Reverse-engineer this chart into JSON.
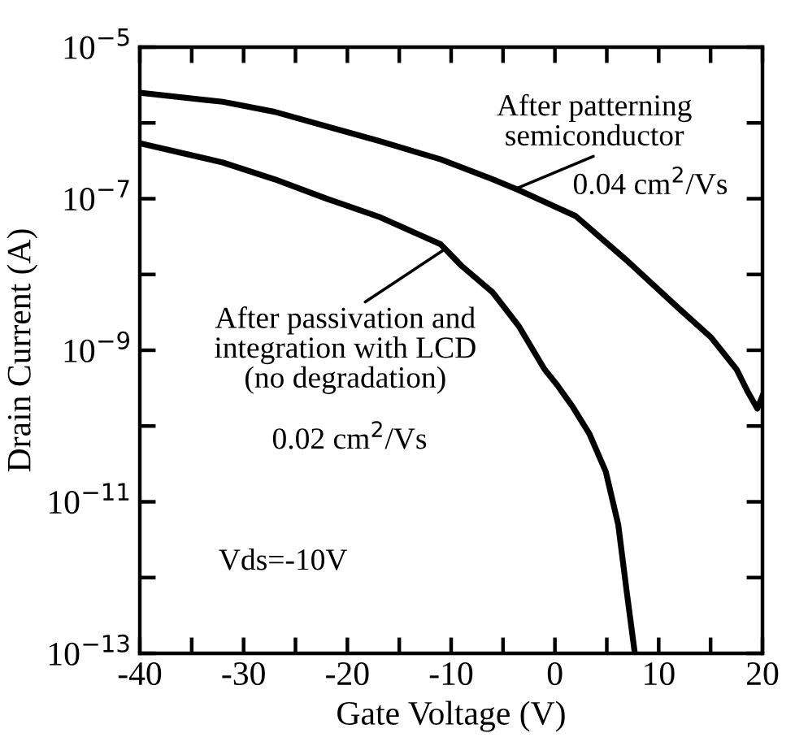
{
  "chart_data": {
    "type": "line",
    "xlabel": "Gate Voltage (V)",
    "ylabel": "Drain Current (A)",
    "log": "y",
    "grid": false,
    "marker": "none",
    "line_style": "solid",
    "xlim": [
      -40,
      20
    ],
    "ylim": [
      1e-13,
      1e-05
    ],
    "xticks": [
      -40,
      {
        "value": -35,
        "label": null
      },
      -30,
      {
        "value": -25,
        "label": null
      },
      -20,
      {
        "value": -15,
        "label": null
      },
      -10,
      {
        "value": -5,
        "label": null
      },
      0,
      {
        "value": 5,
        "label": null
      },
      10,
      {
        "value": 15,
        "label": null
      },
      20
    ],
    "yticks": [
      {
        "value": 1e-13,
        "label": "10$^{−13}$"
      },
      {
        "value": 1e-12,
        "label": null
      },
      {
        "value": 1e-11,
        "label": "10$^{−11}$"
      },
      {
        "value": 1e-10,
        "label": null
      },
      {
        "value": 1e-09,
        "label": "10$^{−9}$"
      },
      {
        "value": 1e-08,
        "label": null
      },
      {
        "value": 1e-07,
        "label": "10$^{−7}$"
      },
      {
        "value": 1e-06,
        "label": null
      },
      {
        "value": 1e-05,
        "label": "10$^{−5}$"
      }
    ],
    "series": [
      {
        "color": "#000000",
        "x": [
          -40,
          -32,
          -27,
          -22,
          -17,
          -11,
          -6,
          -3.5,
          2,
          7,
          12,
          15,
          17.5,
          18.6,
          19.5,
          20
        ],
        "values": [
          2.5e-06,
          1.9e-06,
          1.4e-06,
          9e-07,
          5.8e-07,
          3.3e-07,
          1.8e-07,
          1.3e-07,
          5.9e-08,
          1.5e-08,
          3.5e-09,
          1.5e-09,
          5.6e-10,
          2.8e-10,
          1.7e-10,
          2.5e-10
        ]
      },
      {
        "color": "#000000",
        "x": [
          -40,
          -32,
          -27,
          -22,
          -17,
          -11,
          -9,
          -6,
          -3.5,
          -1,
          0.2,
          1.7,
          3.3,
          4.9,
          6.1,
          6.9,
          7.7
        ],
        "values": [
          5.4e-07,
          3e-07,
          1.8e-07,
          1e-07,
          5.8e-08,
          2.5e-08,
          1.3e-08,
          5.8e-09,
          2.1e-09,
          5.6e-10,
          3.5e-10,
          1.8e-10,
          8e-11,
          2.5e-11,
          5e-12,
          6.8e-13,
          1e-13
        ]
      }
    ],
    "annotations": [
      {
        "text": "After patterning\nsemiconductor",
        "x": -3.5,
        "y": 1.4e-07
      },
      "0.04 cm$^{2}$/Vs",
      {
        "text": "After passivation and\nintegration with LCD\n(no degradation)",
        "x": -10.5,
        "y": 2.2e-08
      },
      "0.02 cm$^{2}$/Vs",
      "Vds=-10V"
    ]
  }
}
